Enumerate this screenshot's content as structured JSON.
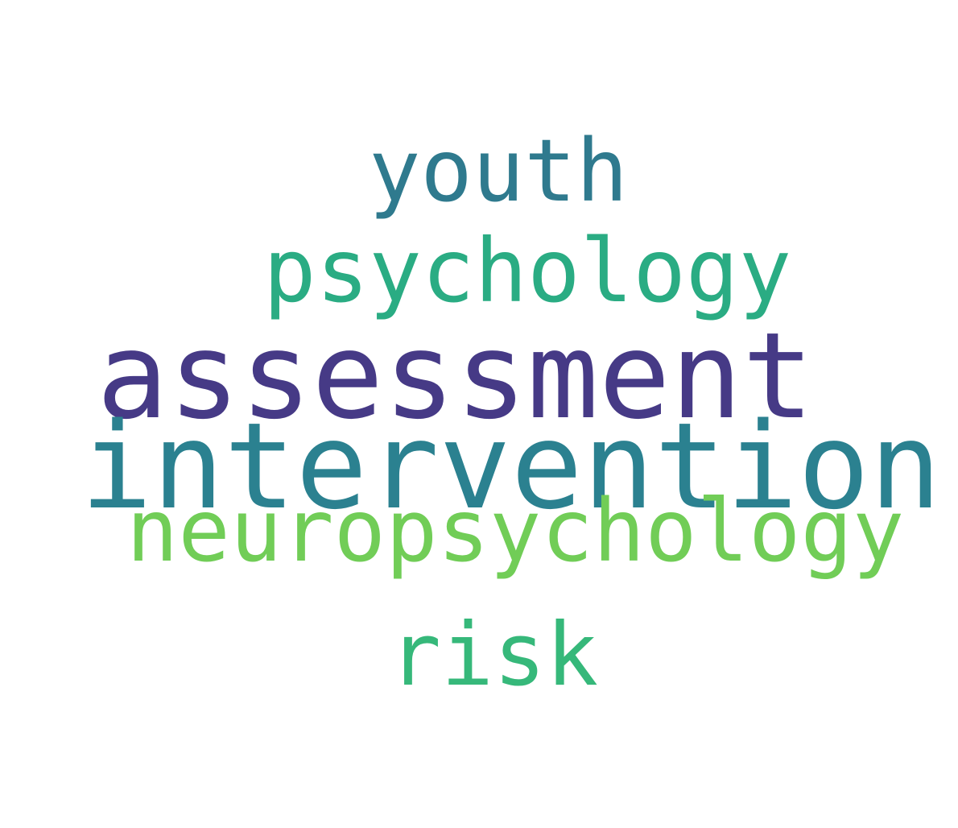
{
  "words": [
    {
      "id": "youth",
      "text": "youth",
      "color": "#2f7a8e"
    },
    {
      "id": "psychology",
      "text": "psychology",
      "color": "#2aac83"
    },
    {
      "id": "assessment",
      "text": "assessment",
      "color": "#463a86"
    },
    {
      "id": "intervention",
      "text": "intervention",
      "color": "#2b8190"
    },
    {
      "id": "neuropsychology",
      "text": "neuropsychology",
      "color": "#71cd57"
    },
    {
      "id": "risk",
      "text": "risk",
      "color": "#36b87a"
    }
  ]
}
